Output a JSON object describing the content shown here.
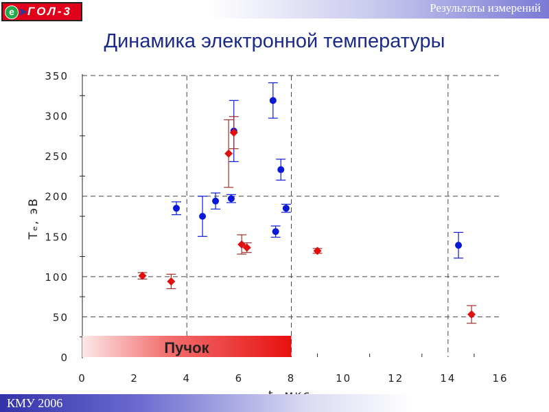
{
  "header": {
    "section_title": "Результаты измерений",
    "logo_letter": "e",
    "logo_text": "ГОЛ-3"
  },
  "page_title": "Динамика электронной температуры",
  "footer": {
    "text": "КМУ 2006"
  },
  "colors": {
    "series_blue": "#0a18d8",
    "series_red": "#e01010",
    "red_error_bar": "#a03030",
    "beam_bar": "#e81010"
  },
  "chart_data": {
    "type": "scatter",
    "xlabel": "t, мкс",
    "ylabel": "Tₑ, эВ",
    "xlim": [
      0,
      16
    ],
    "ylim": [
      0,
      350
    ],
    "x_ticks": [
      0,
      2,
      4,
      6,
      8,
      10,
      12,
      14,
      16
    ],
    "y_ticks": [
      0,
      50,
      100,
      150,
      200,
      250,
      300,
      350
    ],
    "grid": "dashed, x = 4, 8, 14 and y = 50, 100, 200, 350",
    "annotation": {
      "text": "Пучок",
      "x_start": 0,
      "x_end": 8
    },
    "series": [
      {
        "marker": "circle",
        "color": "blue",
        "points": [
          {
            "x": 3.6,
            "y": 185,
            "err_low": 8,
            "err_high": 8
          },
          {
            "x": 4.6,
            "y": 175,
            "err_low": 25,
            "err_high": 25
          },
          {
            "x": 5.1,
            "y": 194,
            "err_low": 10,
            "err_high": 10
          },
          {
            "x": 5.7,
            "y": 197,
            "err_low": 5,
            "err_high": 5
          },
          {
            "x": 5.8,
            "y": 281,
            "err_low": 38,
            "err_high": 38
          },
          {
            "x": 7.3,
            "y": 319,
            "err_low": 22,
            "err_high": 22
          },
          {
            "x": 7.4,
            "y": 156,
            "err_low": 7,
            "err_high": 7
          },
          {
            "x": 7.6,
            "y": 233,
            "err_low": 13,
            "err_high": 13
          },
          {
            "x": 7.8,
            "y": 185,
            "err_low": 5,
            "err_high": 5
          },
          {
            "x": 14.4,
            "y": 139,
            "err_low": 16,
            "err_high": 16
          }
        ]
      },
      {
        "marker": "diamond",
        "color": "red",
        "points": [
          {
            "x": 2.3,
            "y": 101,
            "err_low": 4,
            "err_high": 4
          },
          {
            "x": 3.4,
            "y": 94,
            "err_low": 9,
            "err_high": 9
          },
          {
            "x": 5.6,
            "y": 253,
            "err_low": 42,
            "err_high": 42
          },
          {
            "x": 5.8,
            "y": 279,
            "err_low": 20,
            "err_high": 20
          },
          {
            "x": 6.1,
            "y": 140,
            "err_low": 12,
            "err_high": 12
          },
          {
            "x": 6.3,
            "y": 136,
            "err_low": 6,
            "err_high": 6
          },
          {
            "x": 9.0,
            "y": 132,
            "err_low": 3,
            "err_high": 3
          },
          {
            "x": 14.9,
            "y": 53,
            "err_low": 11,
            "err_high": 11
          }
        ]
      }
    ]
  }
}
